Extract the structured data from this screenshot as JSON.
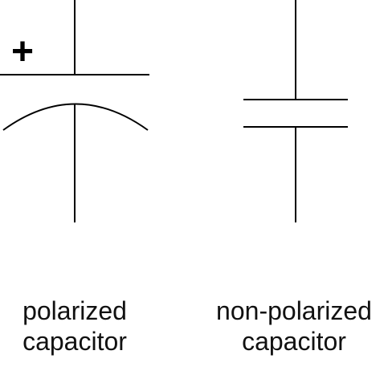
{
  "polarized": {
    "plus_sign": "+",
    "label_line1": "polarized",
    "label_line2": "capacitor"
  },
  "non_polarized": {
    "label_line1": "non-polarized",
    "label_line2": "capacitor"
  },
  "colors": {
    "stroke": "#000000",
    "text": "#111111",
    "background": "#ffffff"
  }
}
